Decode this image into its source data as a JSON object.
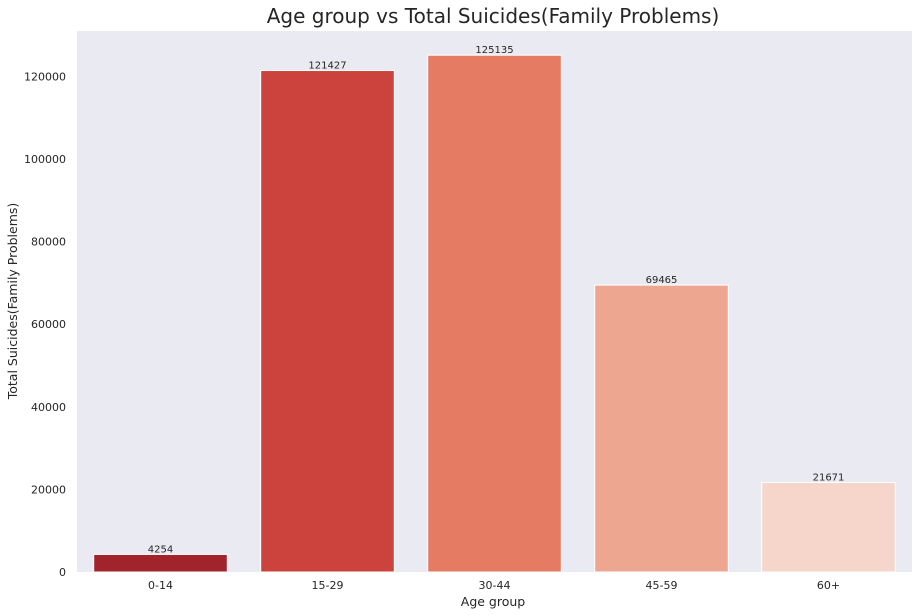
{
  "chart_data": {
    "type": "bar",
    "title": "Age group vs Total Suicides(Family Problems)",
    "xlabel": "Age group",
    "ylabel": "Total Suicides(Family Problems)",
    "categories": [
      "0-14",
      "15-29",
      "30-44",
      "45-59",
      "60+"
    ],
    "values": [
      4254,
      121427,
      125135,
      69465,
      21671
    ],
    "data_labels": [
      "4254",
      "121427",
      "125135",
      "69465",
      "21671"
    ],
    "ylim": [
      0,
      131000
    ],
    "yticks": [
      0,
      20000,
      40000,
      60000,
      80000,
      100000,
      120000
    ],
    "ytick_labels": [
      "0",
      "20000",
      "40000",
      "60000",
      "80000",
      "100000",
      "120000"
    ],
    "grid": false,
    "colors": {
      "background": "#eaeaf2",
      "bars": [
        "#a1232b",
        "#cb433c",
        "#e67b64",
        "#eda791",
        "#f6d6ca"
      ],
      "bar_edge": "#ffffff",
      "text": "#262626"
    }
  }
}
